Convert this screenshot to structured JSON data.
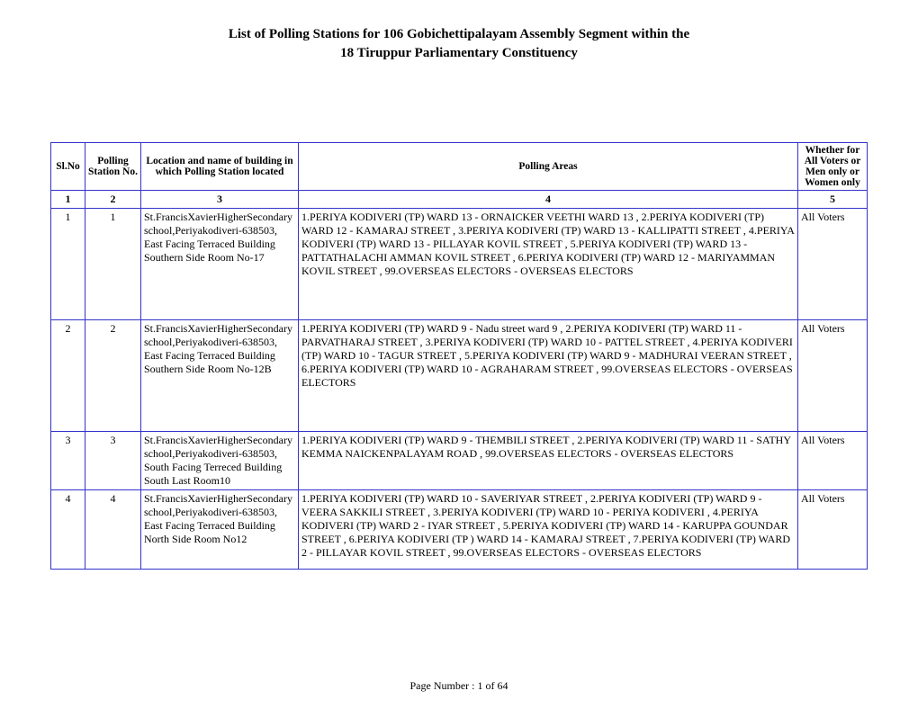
{
  "title_line1": "List of Polling Stations for  106   Gobichettipalayam  Assembly Segment within the",
  "title_line2": "18   Tiruppur Parliamentary Constituency",
  "table": {
    "border_color": "#3333cc",
    "headers": {
      "slno": "Sl.No",
      "station": "Polling Station No.",
      "location": "Location and name of building in which  Polling Station located",
      "areas": "Polling Areas",
      "voter": "Whether for All Voters or Men only or Women only"
    },
    "col_numbers": [
      "1",
      "2",
      "3",
      "4",
      "5"
    ],
    "rows": [
      {
        "slno": "1",
        "station": "1",
        "location": "St.FrancisXavierHigherSecondaryschool,Periyakodiveri-638503, East Facing Terraced Building Southern Side Room No-17",
        "areas": "1.PERIYA KODIVERI (TP) WARD 13 - ORNAICKER VEETHI WARD 13 , 2.PERIYA KODIVERI (TP) WARD  12 - KAMARAJ STREET , 3.PERIYA KODIVERI (TP) WARD  13 - KALLIPATTI STREET , 4.PERIYA KODIVERI (TP) WARD  13 - PILLAYAR KOVIL STREET , 5.PERIYA KODIVERI (TP) WARD  13 - PATTATHALACHI AMMAN KOVIL STREET , 6.PERIYA KODIVERI (TP) WARD  12 - MARIYAMMAN KOVIL STREET , 99.OVERSEAS ELECTORS - OVERSEAS ELECTORS",
        "voter": "All Voters"
      },
      {
        "slno": "2",
        "station": "2",
        "location": "St.FrancisXavierHigherSecondaryschool,Periyakodiveri-638503, East Facing Terraced Building Southern Side Room No-12B",
        "areas": "1.PERIYA KODIVERI (TP) WARD  9 - Nadu street ward 9 , 2.PERIYA KODIVERI (TP) WARD  11 - PARVATHARAJ STREET , 3.PERIYA KODIVERI (TP) WARD  10 - PATTEL STREET , 4.PERIYA KODIVERI (TP) WARD  10 - TAGUR STREET , 5.PERIYA KODIVERI (TP) WARD  9 - MADHURAI VEERAN STREET , 6.PERIYA KODIVERI (TP) WARD  10 - AGRAHARAM STREET , 99.OVERSEAS ELECTORS - OVERSEAS ELECTORS",
        "voter": "All Voters"
      },
      {
        "slno": "3",
        "station": "3",
        "location": "St.FrancisXavierHigherSecondaryschool,Periyakodiveri-638503, South Facing Terreced Building South Last Room10",
        "areas": "1.PERIYA KODIVERI (TP) WARD  9 - THEMBILI STREET , 2.PERIYA KODIVERI (TP) WARD  11 - SATHY KEMMA NAICKENPALAYAM ROAD , 99.OVERSEAS ELECTORS - OVERSEAS ELECTORS",
        "voter": "All Voters"
      },
      {
        "slno": "4",
        "station": "4",
        "location": "St.FrancisXavierHigherSecondaryschool,Periyakodiveri-638503, East Facing Terraced Building North Side Room No12",
        "areas": "1.PERIYA KODIVERI (TP) WARD  10 - SAVERIYAR STREET , 2.PERIYA KODIVERI (TP) WARD  9 - VEERA SAKKILI STREET , 3.PERIYA KODIVERI (TP) WARD 10 - PERIYA KODIVERI , 4.PERIYA KODIVERI (TP) WARD  2 - IYAR STREET , 5.PERIYA KODIVERI (TP) WARD 14 - KARUPPA GOUNDAR STREET , 6.PERIYA KODIVERI (TP ) WARD  14 - KAMARAJ STREET , 7.PERIYA KODIVERI (TP) WARD  2 - PILLAYAR KOVIL STREET , 99.OVERSEAS ELECTORS - OVERSEAS ELECTORS",
        "voter": "All Voters"
      }
    ]
  },
  "footer": "Page Number : 1 of 64"
}
